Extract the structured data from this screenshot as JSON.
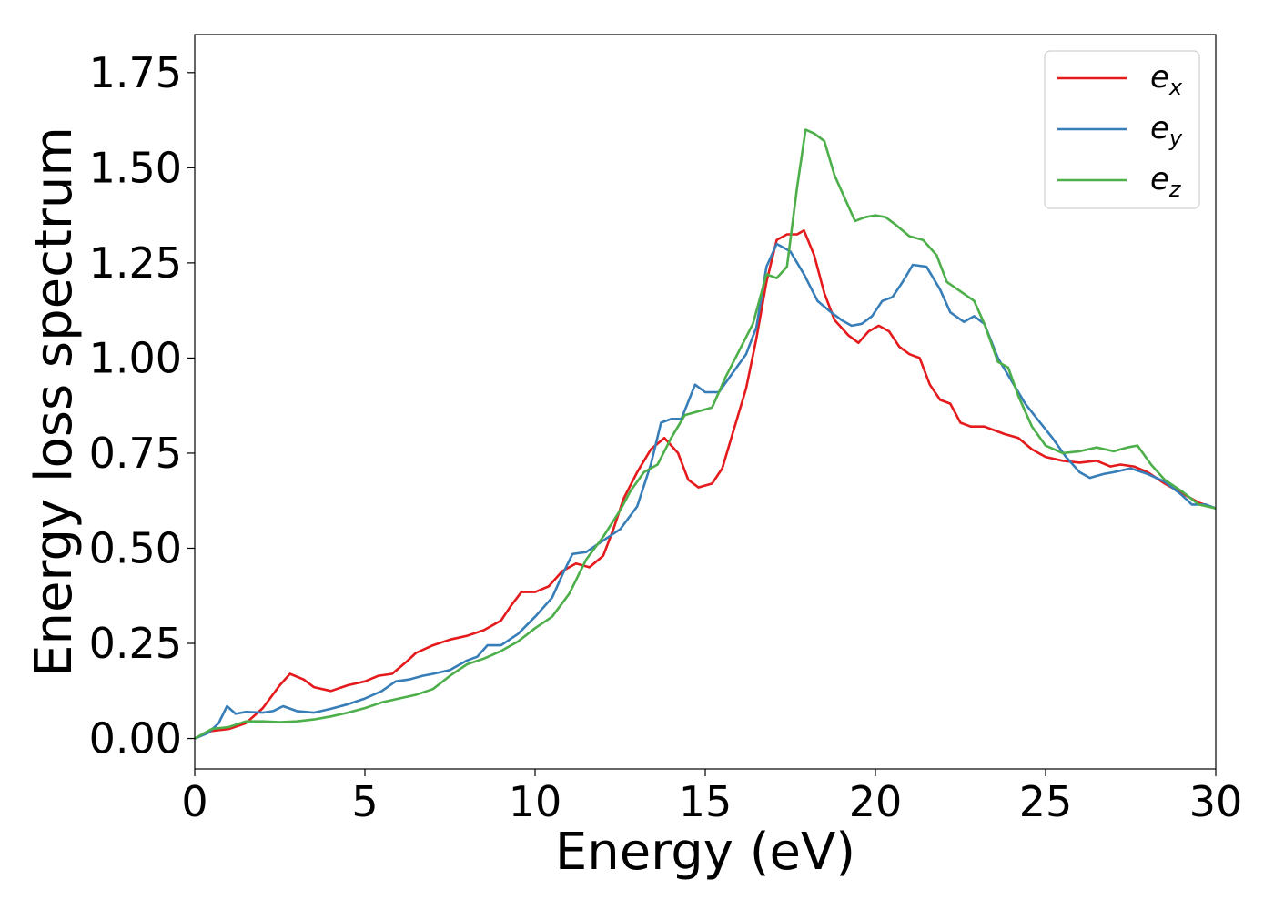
{
  "chart_data": {
    "type": "line",
    "title": "",
    "xlabel": "Energy (eV)",
    "ylabel": "Energy loss spectrum",
    "xlim": [
      0,
      30
    ],
    "ylim": [
      -0.08,
      1.85
    ],
    "xticks": [
      0,
      5,
      10,
      15,
      20,
      25,
      30
    ],
    "xtick_labels": [
      "0",
      "5",
      "10",
      "15",
      "20",
      "25",
      "30"
    ],
    "yticks": [
      0.0,
      0.25,
      0.5,
      0.75,
      1.0,
      1.25,
      1.5,
      1.75
    ],
    "ytick_labels": [
      "0.00",
      "0.25",
      "0.50",
      "0.75",
      "1.00",
      "1.25",
      "1.50",
      "1.75"
    ],
    "grid": false,
    "legend_position": "top-right",
    "series": [
      {
        "name": "e_x",
        "label_base": "e",
        "label_sub": "x",
        "color": "#e41a1c",
        "points": [
          [
            0,
            0
          ],
          [
            0.5,
            0.02
          ],
          [
            1.0,
            0.025
          ],
          [
            1.5,
            0.04
          ],
          [
            2.0,
            0.08
          ],
          [
            2.5,
            0.14
          ],
          [
            2.8,
            0.17
          ],
          [
            3.2,
            0.155
          ],
          [
            3.5,
            0.135
          ],
          [
            4.0,
            0.125
          ],
          [
            4.5,
            0.14
          ],
          [
            5.0,
            0.15
          ],
          [
            5.4,
            0.165
          ],
          [
            5.8,
            0.17
          ],
          [
            6.2,
            0.2
          ],
          [
            6.5,
            0.225
          ],
          [
            7.0,
            0.245
          ],
          [
            7.5,
            0.26
          ],
          [
            8.0,
            0.27
          ],
          [
            8.5,
            0.285
          ],
          [
            9.0,
            0.31
          ],
          [
            9.3,
            0.35
          ],
          [
            9.6,
            0.385
          ],
          [
            10.0,
            0.385
          ],
          [
            10.4,
            0.4
          ],
          [
            10.8,
            0.44
          ],
          [
            11.2,
            0.46
          ],
          [
            11.6,
            0.45
          ],
          [
            12.0,
            0.48
          ],
          [
            12.3,
            0.55
          ],
          [
            12.6,
            0.63
          ],
          [
            13.0,
            0.7
          ],
          [
            13.4,
            0.76
          ],
          [
            13.8,
            0.79
          ],
          [
            14.2,
            0.75
          ],
          [
            14.5,
            0.68
          ],
          [
            14.8,
            0.66
          ],
          [
            15.2,
            0.67
          ],
          [
            15.5,
            0.71
          ],
          [
            15.8,
            0.8
          ],
          [
            16.2,
            0.92
          ],
          [
            16.5,
            1.05
          ],
          [
            16.8,
            1.2
          ],
          [
            17.1,
            1.31
          ],
          [
            17.4,
            1.325
          ],
          [
            17.7,
            1.325
          ],
          [
            17.9,
            1.335
          ],
          [
            18.2,
            1.27
          ],
          [
            18.5,
            1.17
          ],
          [
            18.8,
            1.1
          ],
          [
            19.2,
            1.06
          ],
          [
            19.5,
            1.04
          ],
          [
            19.8,
            1.07
          ],
          [
            20.1,
            1.085
          ],
          [
            20.4,
            1.07
          ],
          [
            20.7,
            1.03
          ],
          [
            21.0,
            1.01
          ],
          [
            21.3,
            1.0
          ],
          [
            21.6,
            0.93
          ],
          [
            21.9,
            0.89
          ],
          [
            22.2,
            0.88
          ],
          [
            22.5,
            0.83
          ],
          [
            22.8,
            0.82
          ],
          [
            23.2,
            0.82
          ],
          [
            23.5,
            0.81
          ],
          [
            23.8,
            0.8
          ],
          [
            24.2,
            0.79
          ],
          [
            24.6,
            0.76
          ],
          [
            25.0,
            0.74
          ],
          [
            25.5,
            0.73
          ],
          [
            26.0,
            0.725
          ],
          [
            26.5,
            0.73
          ],
          [
            26.9,
            0.715
          ],
          [
            27.2,
            0.72
          ],
          [
            27.6,
            0.715
          ],
          [
            28.0,
            0.7
          ],
          [
            28.5,
            0.67
          ],
          [
            29.0,
            0.645
          ],
          [
            29.5,
            0.62
          ],
          [
            30.0,
            0.605
          ]
        ]
      },
      {
        "name": "e_y",
        "label_base": "e",
        "label_sub": "y",
        "color": "#377eb8",
        "points": [
          [
            0,
            0
          ],
          [
            0.4,
            0.015
          ],
          [
            0.7,
            0.04
          ],
          [
            0.95,
            0.085
          ],
          [
            1.2,
            0.065
          ],
          [
            1.5,
            0.07
          ],
          [
            2.0,
            0.068
          ],
          [
            2.3,
            0.072
          ],
          [
            2.6,
            0.085
          ],
          [
            3.0,
            0.072
          ],
          [
            3.5,
            0.068
          ],
          [
            4.0,
            0.078
          ],
          [
            4.5,
            0.09
          ],
          [
            5.0,
            0.105
          ],
          [
            5.5,
            0.125
          ],
          [
            5.9,
            0.15
          ],
          [
            6.3,
            0.155
          ],
          [
            6.7,
            0.165
          ],
          [
            7.0,
            0.17
          ],
          [
            7.5,
            0.18
          ],
          [
            8.0,
            0.205
          ],
          [
            8.3,
            0.215
          ],
          [
            8.6,
            0.245
          ],
          [
            9.0,
            0.245
          ],
          [
            9.5,
            0.275
          ],
          [
            10.0,
            0.32
          ],
          [
            10.5,
            0.37
          ],
          [
            10.8,
            0.43
          ],
          [
            11.1,
            0.485
          ],
          [
            11.5,
            0.49
          ],
          [
            12.0,
            0.52
          ],
          [
            12.5,
            0.55
          ],
          [
            13.0,
            0.61
          ],
          [
            13.4,
            0.72
          ],
          [
            13.7,
            0.83
          ],
          [
            14.0,
            0.84
          ],
          [
            14.3,
            0.84
          ],
          [
            14.7,
            0.93
          ],
          [
            15.0,
            0.91
          ],
          [
            15.4,
            0.91
          ],
          [
            15.8,
            0.96
          ],
          [
            16.2,
            1.01
          ],
          [
            16.5,
            1.08
          ],
          [
            16.8,
            1.24
          ],
          [
            17.1,
            1.3
          ],
          [
            17.5,
            1.28
          ],
          [
            17.9,
            1.22
          ],
          [
            18.3,
            1.15
          ],
          [
            18.7,
            1.12
          ],
          [
            19.0,
            1.1
          ],
          [
            19.3,
            1.085
          ],
          [
            19.6,
            1.09
          ],
          [
            19.9,
            1.11
          ],
          [
            20.2,
            1.15
          ],
          [
            20.5,
            1.16
          ],
          [
            20.8,
            1.2
          ],
          [
            21.1,
            1.245
          ],
          [
            21.5,
            1.24
          ],
          [
            21.9,
            1.18
          ],
          [
            22.2,
            1.12
          ],
          [
            22.6,
            1.095
          ],
          [
            22.9,
            1.11
          ],
          [
            23.2,
            1.09
          ],
          [
            23.6,
            1.0
          ],
          [
            24.0,
            0.94
          ],
          [
            24.4,
            0.88
          ],
          [
            24.8,
            0.835
          ],
          [
            25.2,
            0.79
          ],
          [
            25.6,
            0.74
          ],
          [
            26.0,
            0.7
          ],
          [
            26.3,
            0.685
          ],
          [
            26.7,
            0.695
          ],
          [
            27.0,
            0.7
          ],
          [
            27.5,
            0.71
          ],
          [
            28.0,
            0.695
          ],
          [
            28.5,
            0.675
          ],
          [
            29.0,
            0.64
          ],
          [
            29.3,
            0.615
          ],
          [
            29.7,
            0.615
          ],
          [
            30.0,
            0.605
          ]
        ]
      },
      {
        "name": "e_z",
        "label_base": "e",
        "label_sub": "z",
        "color": "#4daf4a",
        "points": [
          [
            0,
            0
          ],
          [
            0.5,
            0.025
          ],
          [
            1.0,
            0.03
          ],
          [
            1.5,
            0.045
          ],
          [
            2.0,
            0.045
          ],
          [
            2.5,
            0.043
          ],
          [
            3.0,
            0.045
          ],
          [
            3.5,
            0.05
          ],
          [
            4.0,
            0.058
          ],
          [
            4.5,
            0.068
          ],
          [
            5.0,
            0.08
          ],
          [
            5.5,
            0.095
          ],
          [
            6.0,
            0.105
          ],
          [
            6.5,
            0.115
          ],
          [
            7.0,
            0.13
          ],
          [
            7.5,
            0.165
          ],
          [
            8.0,
            0.195
          ],
          [
            8.5,
            0.21
          ],
          [
            9.0,
            0.23
          ],
          [
            9.5,
            0.255
          ],
          [
            10.0,
            0.29
          ],
          [
            10.5,
            0.32
          ],
          [
            11.0,
            0.38
          ],
          [
            11.5,
            0.47
          ],
          [
            12.0,
            0.53
          ],
          [
            12.5,
            0.6
          ],
          [
            12.8,
            0.65
          ],
          [
            13.2,
            0.7
          ],
          [
            13.6,
            0.72
          ],
          [
            14.0,
            0.79
          ],
          [
            14.4,
            0.85
          ],
          [
            14.8,
            0.86
          ],
          [
            15.2,
            0.87
          ],
          [
            15.6,
            0.95
          ],
          [
            16.0,
            1.02
          ],
          [
            16.4,
            1.09
          ],
          [
            16.8,
            1.22
          ],
          [
            17.1,
            1.21
          ],
          [
            17.4,
            1.24
          ],
          [
            17.7,
            1.45
          ],
          [
            17.95,
            1.6
          ],
          [
            18.2,
            1.59
          ],
          [
            18.5,
            1.57
          ],
          [
            18.8,
            1.48
          ],
          [
            19.1,
            1.42
          ],
          [
            19.4,
            1.36
          ],
          [
            19.7,
            1.37
          ],
          [
            20.0,
            1.375
          ],
          [
            20.3,
            1.37
          ],
          [
            20.6,
            1.35
          ],
          [
            21.0,
            1.32
          ],
          [
            21.4,
            1.31
          ],
          [
            21.8,
            1.27
          ],
          [
            22.1,
            1.2
          ],
          [
            22.5,
            1.175
          ],
          [
            22.9,
            1.15
          ],
          [
            23.2,
            1.09
          ],
          [
            23.6,
            0.99
          ],
          [
            23.9,
            0.975
          ],
          [
            24.2,
            0.9
          ],
          [
            24.6,
            0.82
          ],
          [
            25.0,
            0.77
          ],
          [
            25.5,
            0.75
          ],
          [
            26.0,
            0.755
          ],
          [
            26.5,
            0.765
          ],
          [
            27.0,
            0.755
          ],
          [
            27.4,
            0.765
          ],
          [
            27.7,
            0.77
          ],
          [
            28.1,
            0.72
          ],
          [
            28.5,
            0.68
          ],
          [
            29.0,
            0.65
          ],
          [
            29.5,
            0.615
          ],
          [
            30.0,
            0.605
          ]
        ]
      }
    ]
  }
}
